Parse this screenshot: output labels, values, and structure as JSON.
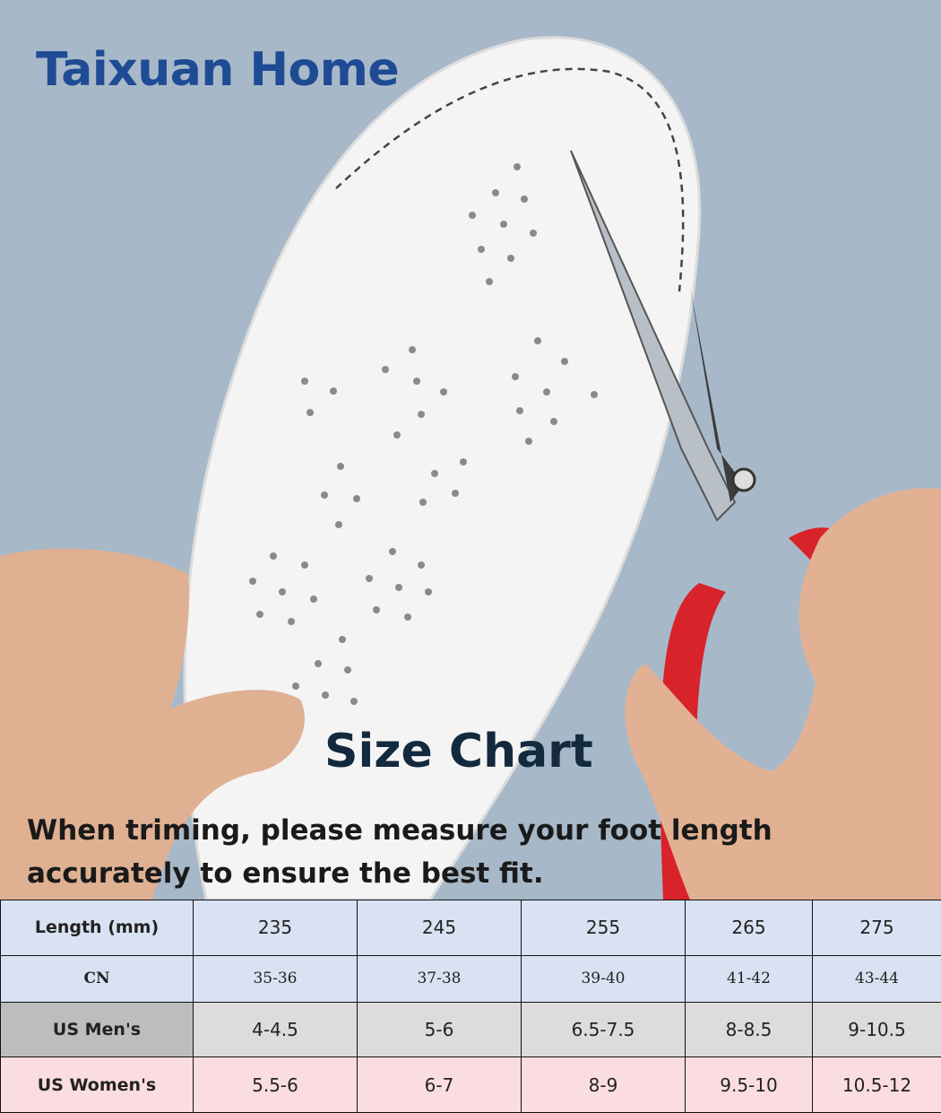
{
  "brand": "Taixuan Home",
  "title": "Size Chart",
  "note": "When triming, please measure your foot length accurately to ensure the best fit.",
  "colors": {
    "background": "#a7b9c9",
    "brand": "#1f4a94",
    "scissors": "#d8232a",
    "row_blue": "#d8e2f2",
    "row_gray": "#dcdcdc",
    "row_pink": "#fbdde1"
  },
  "size_table": {
    "rows": [
      {
        "label": "Length (mm)",
        "values": [
          "235",
          "245",
          "255",
          "265",
          "275"
        ]
      },
      {
        "label": "CN",
        "values": [
          "35-36",
          "37-38",
          "39-40",
          "41-42",
          "43-44"
        ]
      },
      {
        "label": "US Men's",
        "values": [
          "4-4.5",
          "5-6",
          "6.5-7.5",
          "8-8.5",
          "9-10.5"
        ]
      },
      {
        "label": "US Women's",
        "values": [
          "5.5-6",
          "6-7",
          "8-9",
          "9.5-10",
          "10.5-12"
        ]
      }
    ]
  }
}
